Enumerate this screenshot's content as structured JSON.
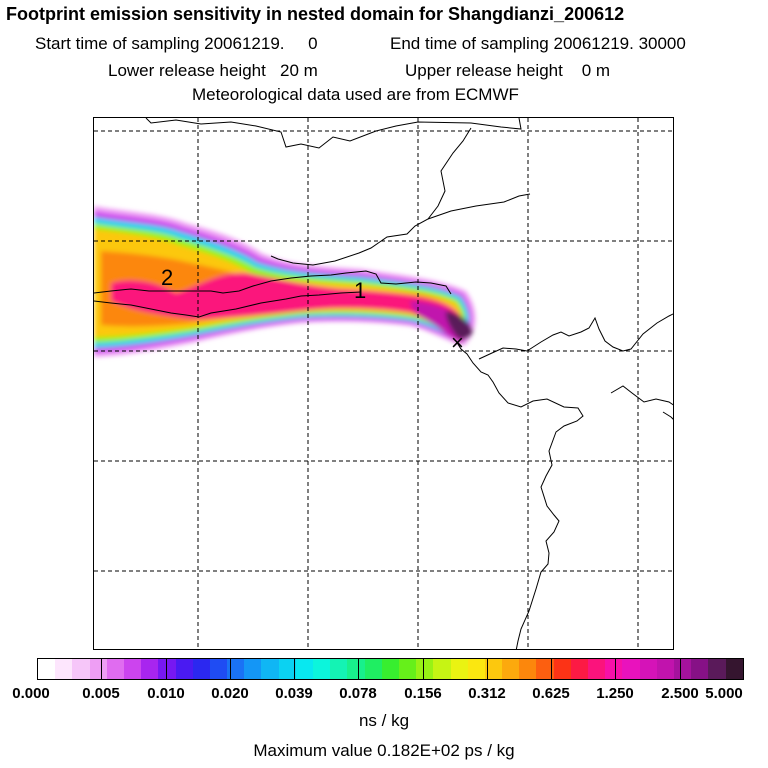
{
  "title": "Footprint emission sensitivity in nested domain for Shangdianzi_200612",
  "sampling": {
    "start_label": "Start time of sampling",
    "start_value": "20061219.     0",
    "end_label": "End time of sampling",
    "end_value": "20061219. 30000"
  },
  "release": {
    "lower_label": "Lower release height",
    "lower_value": "20 m",
    "upper_label": "Upper release height",
    "upper_value": "0 m"
  },
  "met_note": "Meteorological data used are from ECMWF",
  "map": {
    "contour_labels": [
      "2",
      "1"
    ],
    "receptor_marker": "×"
  },
  "colorbar": {
    "tick_labels": [
      "0.000",
      "0.005",
      "0.010",
      "0.020",
      "0.039",
      "0.078",
      "0.156",
      "0.312",
      "0.625",
      "1.250",
      "2.500",
      "5.000"
    ],
    "colors": [
      "#ffffff",
      "#fde6fd",
      "#f6c6f9",
      "#ee9ef4",
      "#e06cf0",
      "#cc44ee",
      "#a825ef",
      "#7718f2",
      "#4a1af2",
      "#2b28f0",
      "#1f4cf3",
      "#1a72f5",
      "#1496f6",
      "#10b6f4",
      "#0bd2f2",
      "#08e8f0",
      "#0cf5dc",
      "#14f3b4",
      "#18f08c",
      "#1fee62",
      "#38ee2f",
      "#66f01a",
      "#98f215",
      "#c6f414",
      "#eaf312",
      "#fbe710",
      "#fcc80e",
      "#fca90d",
      "#fc870c",
      "#fc5f10",
      "#fc3316",
      "#fc1a44",
      "#fb137c",
      "#f710a8",
      "#e912bd",
      "#d513b8",
      "#c113ad",
      "#a5129d",
      "#861186",
      "#5a1a5a",
      "#35152f"
    ],
    "units": "ns / kg"
  },
  "max_value": "Maximum value  0.182E+02 ps / kg"
}
